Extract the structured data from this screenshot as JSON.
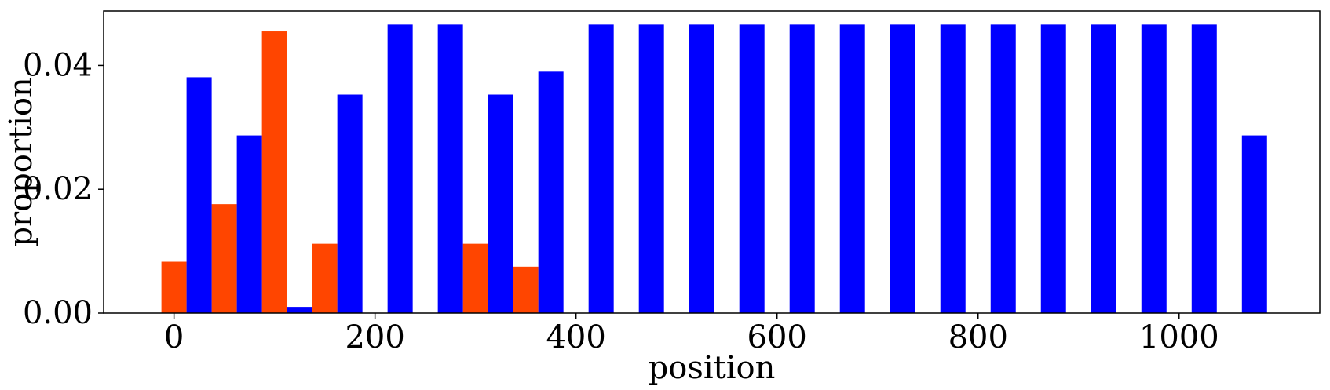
{
  "chart_data": {
    "type": "bar",
    "xlabel": "position",
    "ylabel": "proportion",
    "xlim": [
      -70,
      1140
    ],
    "ylim": [
      0,
      0.0488
    ],
    "xticks": [
      0,
      200,
      400,
      600,
      800,
      1000
    ],
    "xtick_labels": [
      "0",
      "200",
      "400",
      "600",
      "800",
      "1000"
    ],
    "yticks": [
      0.0,
      0.02,
      0.04
    ],
    "ytick_labels": [
      "0.00",
      "0.02",
      "0.04"
    ],
    "grid": false,
    "legend": false,
    "bar_width": 25,
    "series": [
      {
        "color": "#ff4500",
        "x": [
          0,
          50,
          100,
          150,
          300,
          350
        ],
        "values": [
          0.0083,
          0.0176,
          0.0455,
          0.0112,
          0.0112,
          0.0075
        ]
      },
      {
        "color": "#0000ff",
        "x": [
          25,
          75,
          125,
          175,
          225,
          275,
          325,
          375,
          425,
          475,
          525,
          575,
          625,
          675,
          725,
          775,
          825,
          875,
          925,
          975,
          1025,
          1075
        ],
        "values": [
          0.0381,
          0.0287,
          0.001,
          0.0353,
          0.0466,
          0.0466,
          0.0353,
          0.039,
          0.0466,
          0.0466,
          0.0466,
          0.0466,
          0.0466,
          0.0466,
          0.0466,
          0.0466,
          0.0466,
          0.0466,
          0.0466,
          0.0466,
          0.0466,
          0.0287
        ]
      }
    ]
  }
}
